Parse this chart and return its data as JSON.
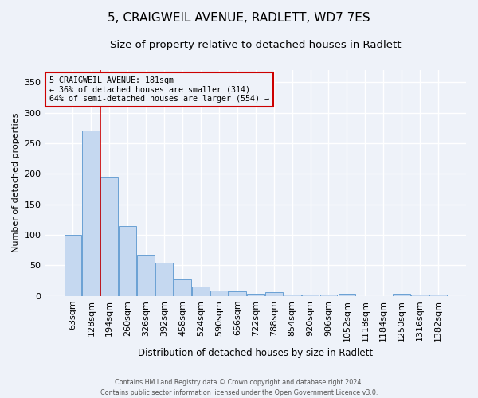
{
  "title1": "5, CRAIGWEIL AVENUE, RADLETT, WD7 7ES",
  "title2": "Size of property relative to detached houses in Radlett",
  "xlabel": "Distribution of detached houses by size in Radlett",
  "ylabel": "Number of detached properties",
  "bar_labels": [
    "63sqm",
    "128sqm",
    "194sqm",
    "260sqm",
    "326sqm",
    "392sqm",
    "458sqm",
    "524sqm",
    "590sqm",
    "656sqm",
    "722sqm",
    "788sqm",
    "854sqm",
    "920sqm",
    "986sqm",
    "1052sqm",
    "1118sqm",
    "1184sqm",
    "1250sqm",
    "1316sqm",
    "1382sqm"
  ],
  "bar_values": [
    100,
    271,
    195,
    115,
    68,
    54,
    27,
    16,
    9,
    8,
    4,
    6,
    3,
    3,
    3,
    4,
    0,
    0,
    4,
    3,
    3
  ],
  "bar_color": "#c5d8f0",
  "bar_edge_color": "#6aa0d4",
  "annotation_line1": "5 CRAIGWEIL AVENUE: 181sqm",
  "annotation_line2": "← 36% of detached houses are smaller (314)",
  "annotation_line3": "64% of semi-detached houses are larger (554) →",
  "vline_color": "#cc0000",
  "annotation_box_edge": "#cc0000",
  "ylim": [
    0,
    370
  ],
  "yticks": [
    0,
    50,
    100,
    150,
    200,
    250,
    300,
    350
  ],
  "footer1": "Contains HM Land Registry data © Crown copyright and database right 2024.",
  "footer2": "Contains public sector information licensed under the Open Government Licence v3.0.",
  "background_color": "#eef2f9",
  "grid_color": "#ffffff",
  "title1_fontsize": 11,
  "title2_fontsize": 9.5
}
